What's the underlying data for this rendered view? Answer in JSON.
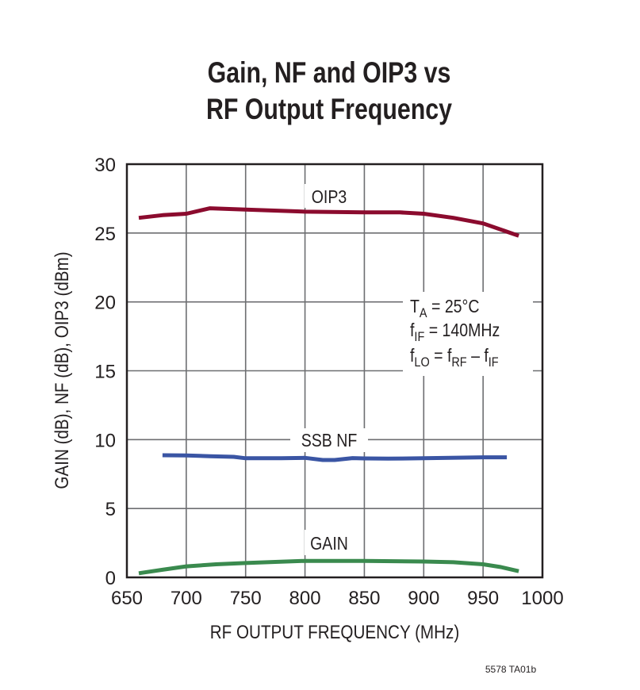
{
  "chart_data": {
    "type": "line",
    "title": [
      "Gain, NF and OIP3 vs",
      "RF Output Frequency"
    ],
    "xlabel": "RF OUTPUT FREQUENCY (MHz)",
    "ylabel": "GAIN (dB), NF (dB), OIP3 (dBm)",
    "xlim": [
      650,
      1000
    ],
    "ylim": [
      0,
      30
    ],
    "xticks": [
      650,
      700,
      750,
      800,
      850,
      900,
      950,
      1000
    ],
    "yticks": [
      0,
      5,
      10,
      15,
      20,
      25,
      30
    ],
    "grid": true,
    "series": [
      {
        "name": "OIP3",
        "color": "#8b0b2e",
        "x": [
          660,
          680,
          700,
          720,
          750,
          800,
          850,
          880,
          900,
          925,
          950,
          980
        ],
        "y": [
          26.1,
          26.3,
          26.4,
          26.8,
          26.7,
          26.55,
          26.5,
          26.5,
          26.4,
          26.1,
          25.7,
          24.8
        ]
      },
      {
        "name": "SSB NF",
        "color": "#3a55a4",
        "x": [
          680,
          700,
          720,
          740,
          750,
          780,
          800,
          815,
          825,
          840,
          850,
          870,
          900,
          950,
          970
        ],
        "y": [
          8.87,
          8.85,
          8.8,
          8.75,
          8.65,
          8.65,
          8.68,
          8.52,
          8.52,
          8.66,
          8.64,
          8.62,
          8.65,
          8.72,
          8.72
        ]
      },
      {
        "name": "GAIN",
        "color": "#3a8a4e",
        "x": [
          660,
          680,
          700,
          725,
          750,
          775,
          800,
          850,
          900,
          925,
          950,
          965,
          980
        ],
        "y": [
          0.3,
          0.55,
          0.8,
          0.95,
          1.04,
          1.12,
          1.2,
          1.2,
          1.15,
          1.1,
          0.95,
          0.75,
          0.45
        ]
      }
    ],
    "annotations": {
      "ta": {
        "main": "T",
        "sub": "A",
        "rest": " = 25°C"
      },
      "fif": {
        "main": "f",
        "sub": "IF",
        "rest": " = 140MHz"
      },
      "flo": {
        "f1": "f",
        "s1": "LO",
        "mid": " = f",
        "s2": "RF",
        "dash": " – f",
        "s3": "IF"
      }
    },
    "figure_id": "5578 TA01b"
  }
}
